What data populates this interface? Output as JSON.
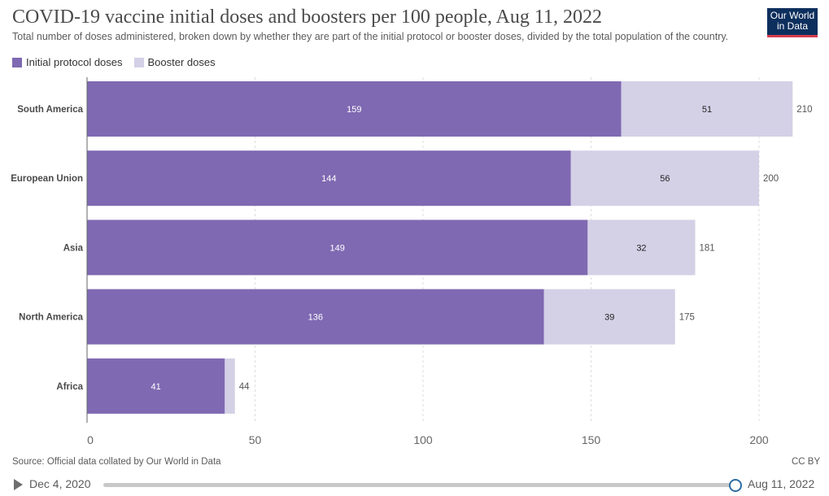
{
  "header": {
    "title": "COVID-19 vaccine initial doses and boosters per 100 people, Aug 11, 2022",
    "subtitle": "Total number of doses administered, broken down by whether they are part of the initial protocol or booster doses, divided by the total population of the country.",
    "logo_line1": "Our World",
    "logo_line2": "in Data"
  },
  "footer": {
    "source": "Source: Official data collated by Our World in Data",
    "license": "CC BY"
  },
  "timeline": {
    "start_label": "Dec 4, 2020",
    "end_label": "Aug 11, 2022",
    "position": 1.0
  },
  "colors": {
    "initial": "#7f69b2",
    "booster": "#d4d0e6",
    "grid": "#dcdcdc",
    "axis": "#666666"
  },
  "chart_data": {
    "type": "bar",
    "orientation": "horizontal",
    "stacked": true,
    "categories": [
      "South America",
      "European Union",
      "Asia",
      "North America",
      "Africa"
    ],
    "series": [
      {
        "name": "Initial protocol doses",
        "values": [
          159,
          144,
          149,
          136,
          41
        ]
      },
      {
        "name": "Booster doses",
        "values": [
          51,
          56,
          32,
          39,
          3
        ]
      }
    ],
    "totals": [
      210,
      200,
      181,
      175,
      44
    ],
    "segment_labels": [
      [
        "159",
        "51"
      ],
      [
        "144",
        "56"
      ],
      [
        "149",
        "32"
      ],
      [
        "136",
        "39"
      ],
      [
        "41",
        ""
      ]
    ],
    "total_labels": [
      "210",
      "200",
      "181",
      "175",
      "44"
    ],
    "xlim": [
      0,
      210
    ],
    "xticks": [
      0,
      50,
      100,
      150,
      200
    ],
    "xtick_labels": [
      "0",
      "50",
      "100",
      "150",
      "200"
    ],
    "grid": true,
    "legend_position": "top-left"
  }
}
